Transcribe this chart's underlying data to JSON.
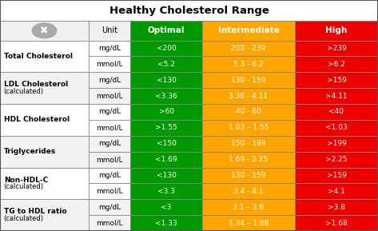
{
  "title": "Healthy Cholesterol Range",
  "col_headers": [
    "",
    "Unit",
    "Optimal",
    "Intermediate",
    "High"
  ],
  "header_colors": [
    "#f0f0f0",
    "#f0f0f0",
    "#009900",
    "#FFA500",
    "#EE0000"
  ],
  "header_text_colors": [
    "#000000",
    "#000000",
    "#ffffff",
    "#ffffff",
    "#ffffff"
  ],
  "rows": [
    {
      "label": "Total Cholesterol",
      "label2": "",
      "bold": true,
      "sub": [
        {
          "unit": "mg/dL",
          "optimal": "<200",
          "intermediate": "200 - 239",
          "high": ">239"
        },
        {
          "unit": "mmol/L",
          "optimal": "<5.2",
          "intermediate": "5.3 - 6.2",
          "high": ">6.2"
        }
      ]
    },
    {
      "label": "LDL Cholesterol",
      "label2": "(calculated)",
      "bold": true,
      "sub": [
        {
          "unit": "mg/dL",
          "optimal": "<130",
          "intermediate": "130 - 159",
          "high": ">159"
        },
        {
          "unit": "mmol/L",
          "optimal": "<3.36",
          "intermediate": "3.36 - 4.11",
          "high": ">4.11"
        }
      ]
    },
    {
      "label": "HDL Cholesterol",
      "label2": "",
      "bold": true,
      "sub": [
        {
          "unit": "mg/dL",
          "optimal": ">60",
          "intermediate": "40 - 60",
          "high": "<40"
        },
        {
          "unit": "mmol/L",
          "optimal": ">1.55",
          "intermediate": "1.03 – 1.55",
          "high": "<1.03"
        }
      ]
    },
    {
      "label": "Triglycerides",
      "label2": "",
      "bold": true,
      "sub": [
        {
          "unit": "mg/dL",
          "optimal": "<150",
          "intermediate": "150 - 199",
          "high": ">199"
        },
        {
          "unit": "mmol/L",
          "optimal": "<1.69",
          "intermediate": "1.69 - 2.25",
          "high": ">2.25"
        }
      ]
    },
    {
      "label": "Non-HDL-C",
      "label2": "(calculated)",
      "bold": true,
      "sub": [
        {
          "unit": "mg/dL",
          "optimal": "<130",
          "intermediate": "130 - 159",
          "high": ">159"
        },
        {
          "unit": "mmol/L",
          "optimal": "<3.3",
          "intermediate": "3.4 - 4.1",
          "high": ">4.1"
        }
      ]
    },
    {
      "label": "TG to HDL ratio",
      "label2": "(calculated)",
      "bold": true,
      "sub": [
        {
          "unit": "mg/dL",
          "optimal": "<3",
          "intermediate": "3.1 – 3.8",
          "high": ">3.8"
        },
        {
          "unit": "mmol/L",
          "optimal": "<1.33",
          "intermediate": "1.34 – 1.68",
          "high": ">1.68"
        }
      ]
    }
  ],
  "col_green": "#009900",
  "col_orange": "#FFA500",
  "col_red": "#EE0000",
  "col_white": "#ffffff",
  "border_color": "#888888",
  "title_bg": "#ffffff",
  "odd_bg": "#ffffff",
  "even_bg": "#f2f2f2"
}
